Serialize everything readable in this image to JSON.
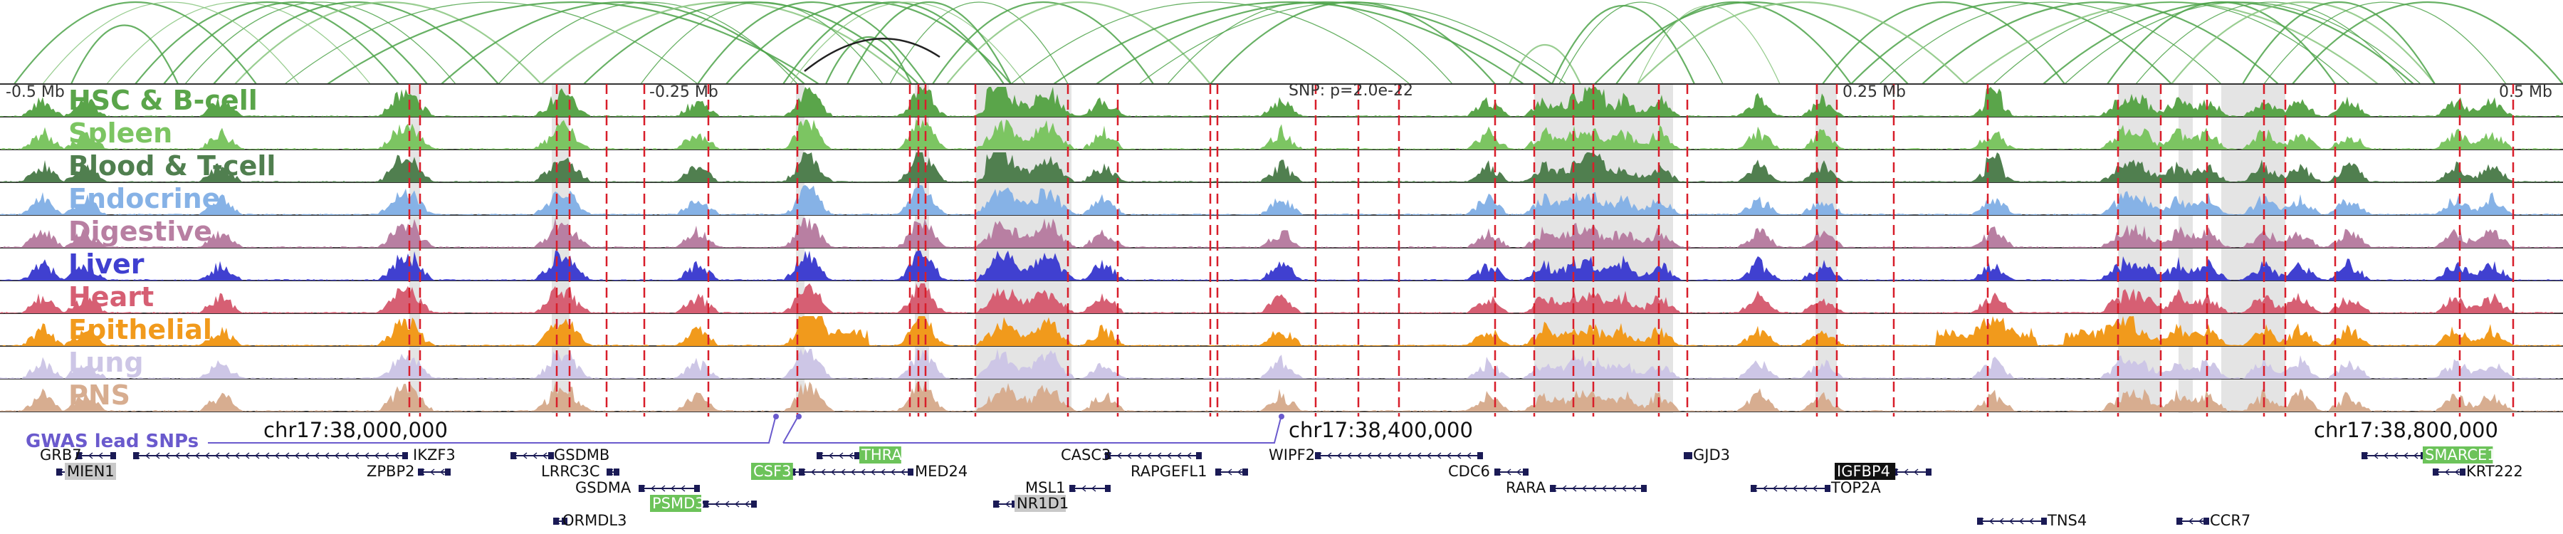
{
  "ruler": {
    "left": "-0.5 Mb",
    "mid_left": "-0.25 Mb",
    "center": "SNP: p=2.0e-22",
    "mid_right": "0.25 Mb",
    "right": "0.5 Mb"
  },
  "tracks": [
    {
      "name": "HSC & B-cell",
      "color": "#5aa54a"
    },
    {
      "name": "Spleen",
      "color": "#7cc562"
    },
    {
      "name": "Blood & T-cell",
      "color": "#507f4f"
    },
    {
      "name": "Endocrine",
      "color": "#86b2e6"
    },
    {
      "name": "Digestive",
      "color": "#b87fa2"
    },
    {
      "name": "Liver",
      "color": "#4040d0"
    },
    {
      "name": "Heart",
      "color": "#d65f73"
    },
    {
      "name": "Epithelial",
      "color": "#f19a1c"
    },
    {
      "name": "Lung",
      "color": "#cdc6e6"
    },
    {
      "name": "PNS",
      "color": "#d7ad90"
    }
  ],
  "gwas_label": "GWAS lead SNPs",
  "coords": {
    "c1": "chr17:38,000,000",
    "c2": "chr17:38,400,000",
    "c3": "chr17:38,800,000"
  },
  "genes": [
    {
      "name": "GRB7",
      "hl": "none"
    },
    {
      "name": "MIEN1",
      "hl": "gray"
    },
    {
      "name": "IKZF3",
      "hl": "none"
    },
    {
      "name": "ZPBP2",
      "hl": "none"
    },
    {
      "name": "GSDMB",
      "hl": "none"
    },
    {
      "name": "LRRC3C",
      "hl": "none"
    },
    {
      "name": "GSDMA",
      "hl": "none"
    },
    {
      "name": "ORMDL3",
      "hl": "none"
    },
    {
      "name": "PSMD3",
      "hl": "green"
    },
    {
      "name": "CSF3",
      "hl": "green"
    },
    {
      "name": "THRA",
      "hl": "green"
    },
    {
      "name": "MED24",
      "hl": "none"
    },
    {
      "name": "CASC3",
      "hl": "none"
    },
    {
      "name": "RAPGEFL1",
      "hl": "none"
    },
    {
      "name": "MSL1",
      "hl": "none"
    },
    {
      "name": "NR1D1",
      "hl": "gray"
    },
    {
      "name": "WIPF2",
      "hl": "none"
    },
    {
      "name": "CDC6",
      "hl": "none"
    },
    {
      "name": "RARA",
      "hl": "none"
    },
    {
      "name": "GJD3",
      "hl": "none"
    },
    {
      "name": "IGFBP4",
      "hl": "black"
    },
    {
      "name": "TOP2A",
      "hl": "none"
    },
    {
      "name": "TNS4",
      "hl": "none"
    },
    {
      "name": "CCR7",
      "hl": "none"
    },
    {
      "name": "SMARCE1",
      "hl": "green"
    },
    {
      "name": "KRT222",
      "hl": "none"
    }
  ],
  "colors": {
    "arc": "#4ea34a",
    "snp_line": "#d81e2a",
    "gwas": "#6a5acd",
    "gene": "#1a1a55"
  }
}
